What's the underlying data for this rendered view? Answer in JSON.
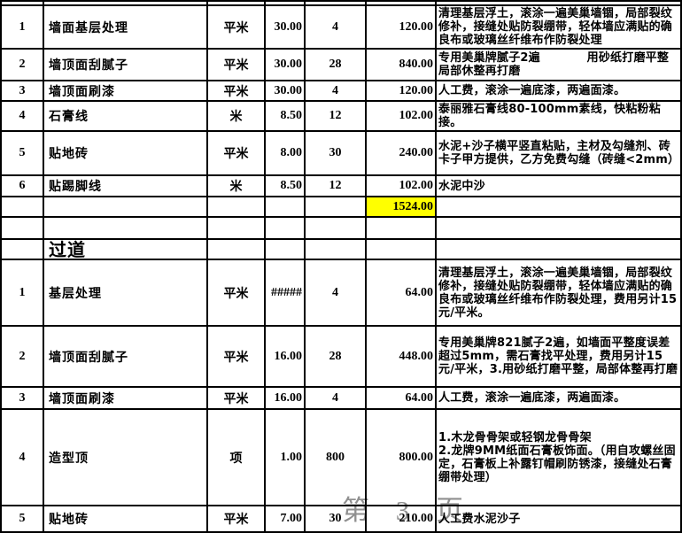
{
  "table": {
    "rows": [
      {
        "type": "partial"
      },
      {
        "type": "item",
        "num": "1",
        "item": "墙面基层处理",
        "unit": "平米",
        "price": "30.00",
        "qty": "4",
        "total": "120.00",
        "notes": "清理基层浮土，滚涂一遍美巢墙锢，局部裂纹修补，接缝处贴防裂绷带，轻体墙应满贴的确良布或玻璃丝纤维布作防裂处理"
      },
      {
        "type": "item",
        "num": "2",
        "item": "墙顶面刮腻子",
        "unit": "平米",
        "price": "30.00",
        "qty": "28",
        "total": "840.00",
        "notes": "专用美巢牌腻子2遍　　　　用砂纸打磨平整局部休整再打磨"
      },
      {
        "type": "item",
        "num": "3",
        "item": "墙顶面刷漆",
        "unit": "平米",
        "price": "30.00",
        "qty": "4",
        "total": "120.00",
        "notes": "人工费，滚涂一遍底漆，两遍面漆。"
      },
      {
        "type": "item",
        "num": "4",
        "item": "石膏线",
        "unit": "米",
        "price": "8.50",
        "qty": "12",
        "total": "102.00",
        "notes": "泰丽雅石膏线80-100mm素线，快粘粉粘接。"
      },
      {
        "type": "item",
        "num": "5",
        "item": "贴地砖",
        "unit": "平米",
        "price": "8.00",
        "qty": "30",
        "total": "240.00",
        "notes": "水泥+沙子横平竖直粘贴，主材及勾缝剂、砖卡子甲方提供，乙方免费勾缝（砖缝<2mm）"
      },
      {
        "type": "item",
        "num": "6",
        "item": "贴踢脚线",
        "unit": "米",
        "price": "8.50",
        "qty": "12",
        "total": "102.00",
        "notes": "水泥中沙"
      },
      {
        "type": "subtotal",
        "total": "1524.00"
      },
      {
        "type": "empty"
      },
      {
        "type": "section",
        "item": "过道"
      },
      {
        "type": "item",
        "num": "1",
        "item": "基层处理",
        "unit": "平米",
        "price": "#####",
        "qty": "4",
        "total": "64.00",
        "notes": "清理基层浮土，滚涂一遍美巢墙锢，局部裂纹修补，接缝处贴防裂绷带，轻体墙应满贴的确良布或玻璃丝纤维布作防裂处理，费用另计15元/平米。"
      },
      {
        "type": "item",
        "num": "2",
        "item": "墙顶面刮腻子",
        "unit": "平米",
        "price": "16.00",
        "qty": "28",
        "total": "448.00",
        "notes": "专用美巢牌821腻子2遍，如墙面平整度误差超过5mm，需石膏找平处理，费用另计15元/平米，3.用砂纸打磨平整，局部体整再打磨"
      },
      {
        "type": "item",
        "num": "3",
        "item": "墙顶面刷漆",
        "unit": "平米",
        "price": "16.00",
        "qty": "4",
        "total": "64.00",
        "notes": "人工费，滚涂一遍底漆，两遍面漆。"
      },
      {
        "type": "item",
        "num": "4",
        "item": "造型顶",
        "unit": "项",
        "price": "1.00",
        "qty": "800",
        "total": "800.00",
        "notes": "1.木龙骨骨架或轻钢龙骨骨架\n2.龙牌9MM纸面石膏板饰面。（用自攻螺丝固定，石膏板上补露钉帽刷防锈漆，接缝处石膏绷带处理）"
      },
      {
        "type": "item",
        "num": "5",
        "item": "贴地砖",
        "unit": "平米",
        "price": "7.00",
        "qty": "30",
        "total": "210.00",
        "notes": "人工费水泥沙子"
      }
    ]
  },
  "watermark": {
    "text": "第 3 页"
  },
  "colors": {
    "grid": "#000000",
    "subtotal_highlight": "#ffff00",
    "watermark_gray": "#8f8f8f"
  }
}
